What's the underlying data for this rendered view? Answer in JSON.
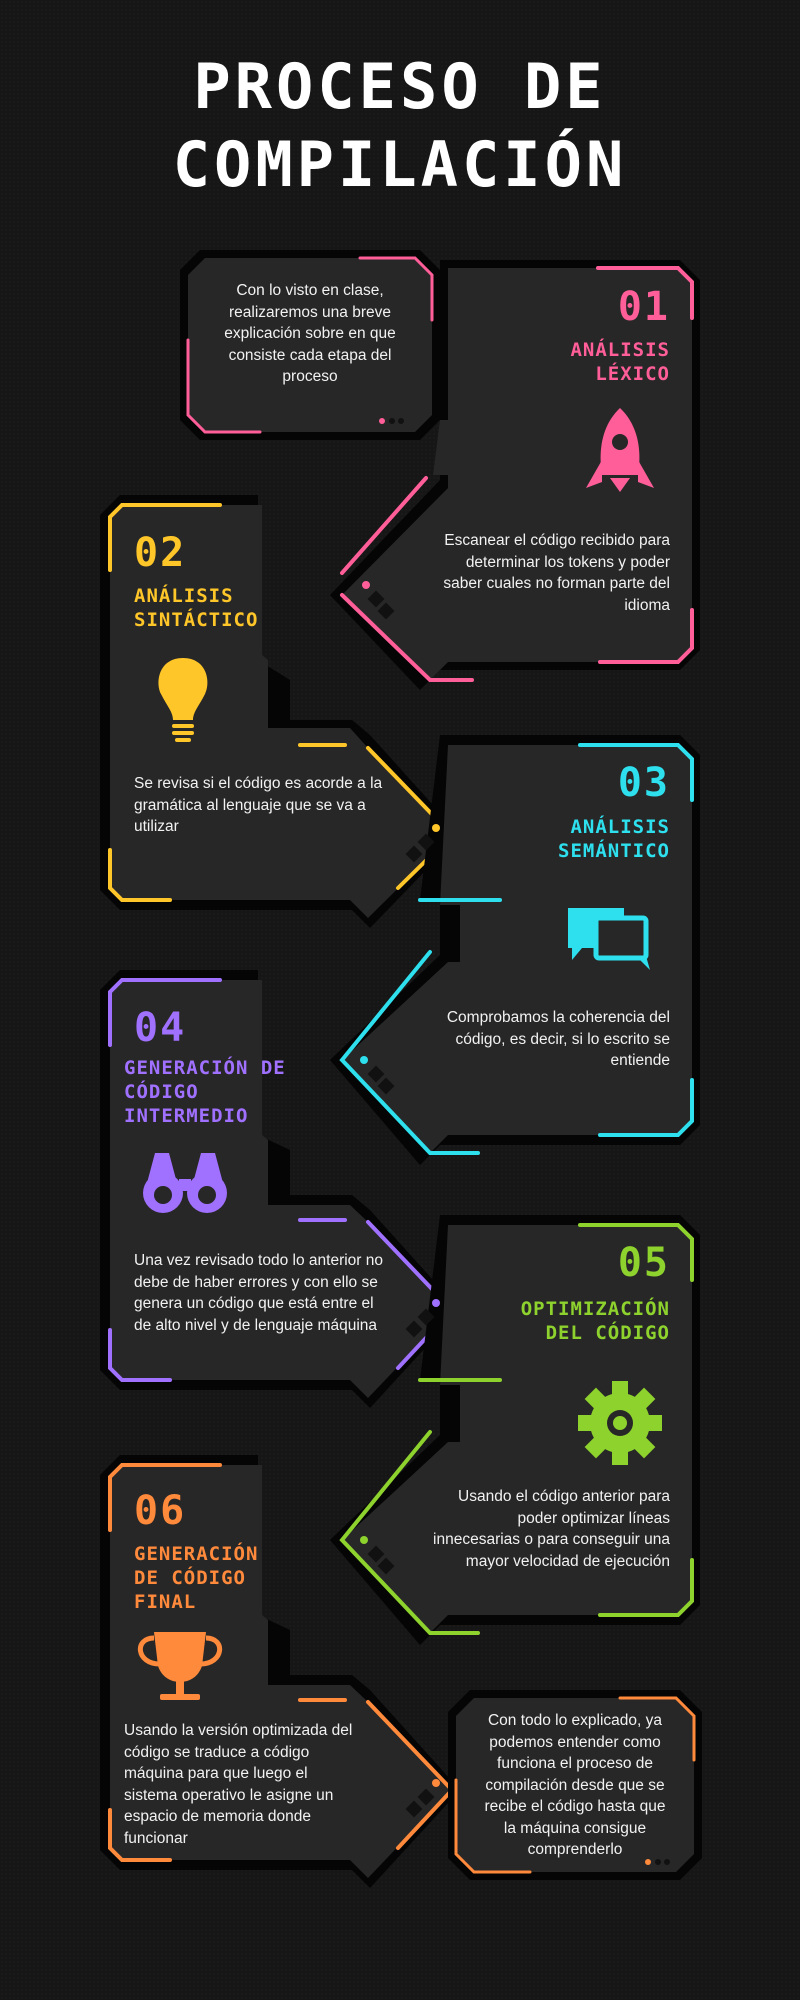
{
  "title": {
    "line1": "PROCESO DE",
    "line2": "COMPILACIÓN"
  },
  "intro_note": "Con lo visto en clase, realizaremos una breve explicación sobre en que consiste cada etapa del proceso",
  "outro_note": "Con todo lo explicado, ya podemos entender como funciona el proceso de compilación desde que se recibe el código hasta que la máquina consigue comprenderlo",
  "steps": [
    {
      "number": "01",
      "title": "ANÁLISIS\nLÉXICO",
      "description": "Escanear el código recibido para determinar los tokens y poder saber cuales no forman parte del idioma",
      "color": "#ff5e98",
      "icon": "rocket-icon"
    },
    {
      "number": "02",
      "title": "ANÁLISIS\nSINTÁCTICO",
      "description": "Se revisa si el código es acorde a la gramática al lenguaje que se va a utilizar",
      "color": "#ffc629",
      "icon": "lightbulb-icon"
    },
    {
      "number": "03",
      "title": "ANÁLISIS\nSEMÁNTICO",
      "description": "Comprobamos la coherencia del código, es decir, si lo escrito se entiende",
      "color": "#2ee0ee",
      "icon": "chat-bubbles-icon"
    },
    {
      "number": "04",
      "title": "GENERACIÓN DE\nCÓDIGO\nINTERMEDIO",
      "description": "Una vez revisado todo lo anterior no debe de haber errores y con ello se genera un código que está entre el de alto nivel y de lenguaje máquina",
      "color": "#a070ff",
      "icon": "binoculars-icon"
    },
    {
      "number": "05",
      "title": "OPTIMIZACIÓN\nDEL CÓDIGO",
      "description": "Usando el código anterior para poder optimizar líneas innecesarias o para conseguir una mayor velocidad de ejecución",
      "color": "#8ed22e",
      "icon": "gear-icon"
    },
    {
      "number": "06",
      "title": "GENERACIÓN\nDE CÓDIGO\nFINAL",
      "description": "Usando la versión optimizada del código se traduce a código máquina para que luego el sistema operativo le asigne un espacio de memoria donde funcionar",
      "color": "#ff8a3c",
      "icon": "trophy-icon"
    }
  ]
}
